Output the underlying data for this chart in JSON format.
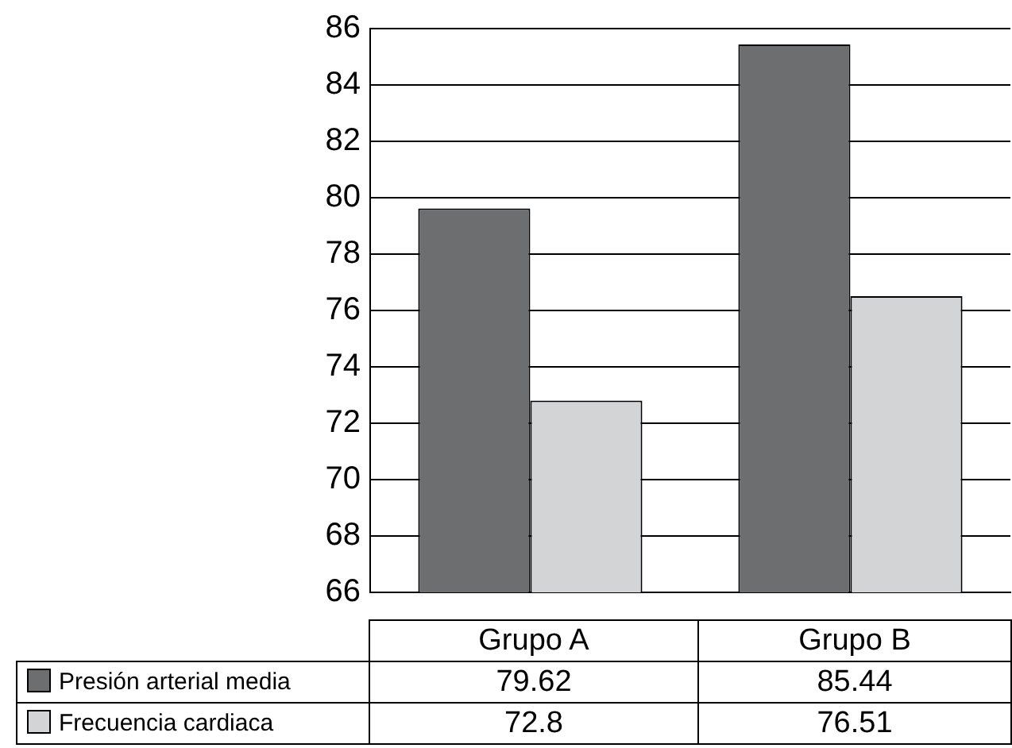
{
  "chart_data": {
    "type": "bar",
    "categories": [
      "Grupo A",
      "Grupo B"
    ],
    "series": [
      {
        "name": "Presión arterial media",
        "color": "#6d6e70",
        "values": [
          79.62,
          85.44
        ]
      },
      {
        "name": "Frecuencia cardiaca",
        "color": "#d3d4d6",
        "values": [
          72.8,
          76.51
        ]
      }
    ],
    "ylim": [
      66,
      86
    ],
    "yticks": [
      66,
      68,
      70,
      72,
      74,
      76,
      78,
      80,
      82,
      84,
      86
    ],
    "grid": "y",
    "data_labels": true,
    "legend": "bottom"
  }
}
